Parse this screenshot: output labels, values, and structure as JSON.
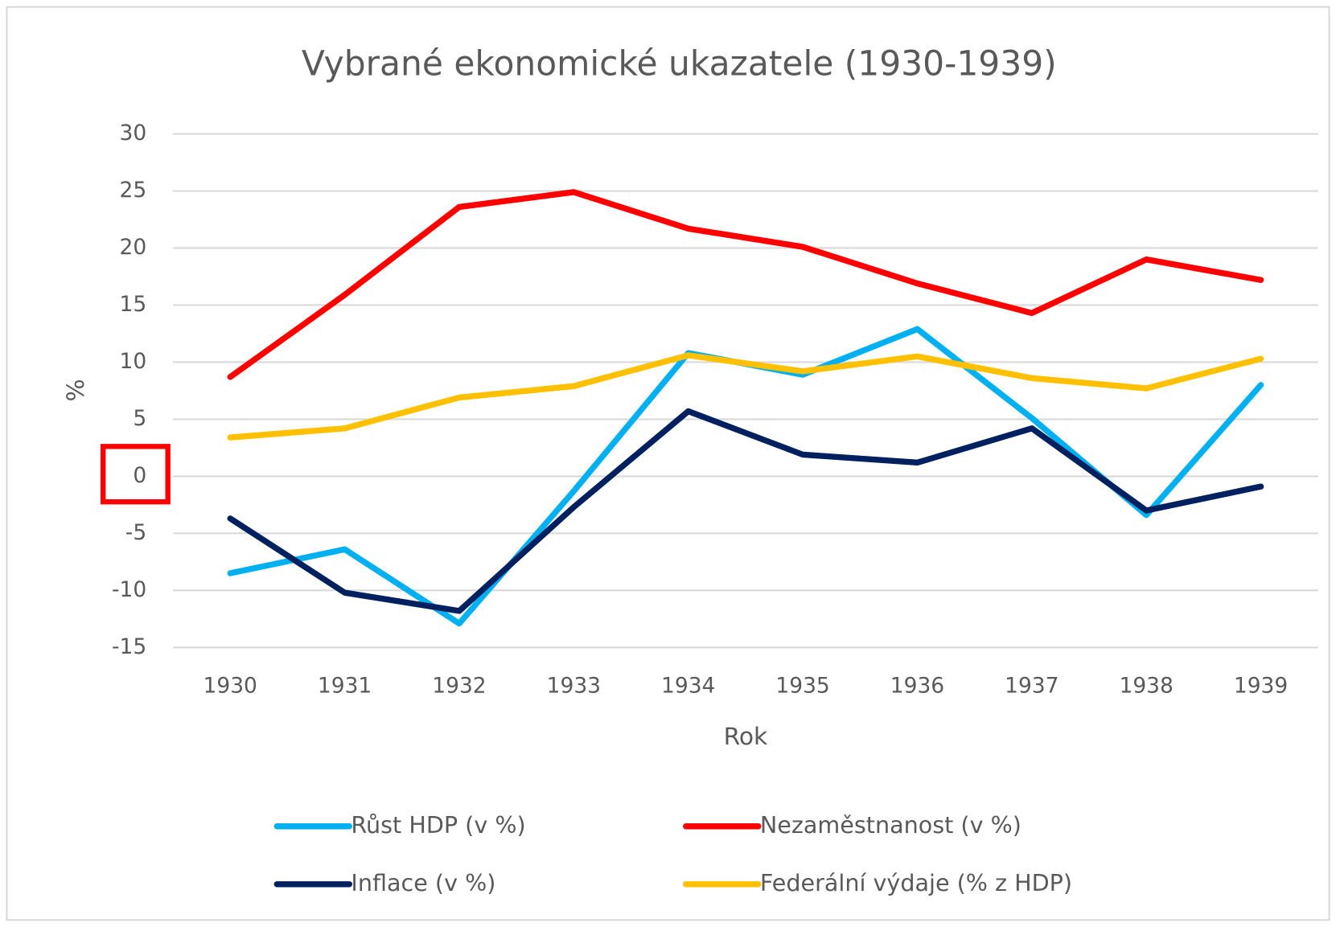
{
  "chart_data": {
    "type": "line",
    "title": "Vybrané ekonomické ukazatele (1930-1939)",
    "x_label": "Rok",
    "y_label": "%",
    "categories": [
      "1930",
      "1931",
      "1932",
      "1933",
      "1934",
      "1935",
      "1936",
      "1937",
      "1938",
      "1939"
    ],
    "series": [
      {
        "name": "Růst HDP (v %)",
        "color": "#00b0f0",
        "values": [
          -8.5,
          -6.4,
          -12.9,
          -1.3,
          10.8,
          8.9,
          12.9,
          5.1,
          -3.4,
          8.0
        ]
      },
      {
        "name": "Nezaměstnanost (v %)",
        "color": "#ff0000",
        "values": [
          8.7,
          15.9,
          23.6,
          24.9,
          21.7,
          20.1,
          16.9,
          14.3,
          19.0,
          17.2
        ]
      },
      {
        "name": "Inflace (v %)",
        "color": "#002060",
        "values": [
          -3.7,
          -10.2,
          -11.8,
          -2.7,
          5.7,
          1.9,
          1.2,
          4.2,
          -3.0,
          -0.9
        ]
      },
      {
        "name": "Federální výdaje (% z HDP)",
        "color": "#ffc000",
        "values": [
          3.4,
          4.2,
          6.9,
          7.9,
          10.6,
          9.2,
          10.5,
          8.6,
          7.7,
          10.3
        ]
      }
    ],
    "ylim": [
      -15,
      30
    ],
    "yticks": [
      -15,
      -10,
      -5,
      0,
      5,
      10,
      15,
      20,
      25,
      30
    ],
    "grid": true
  }
}
